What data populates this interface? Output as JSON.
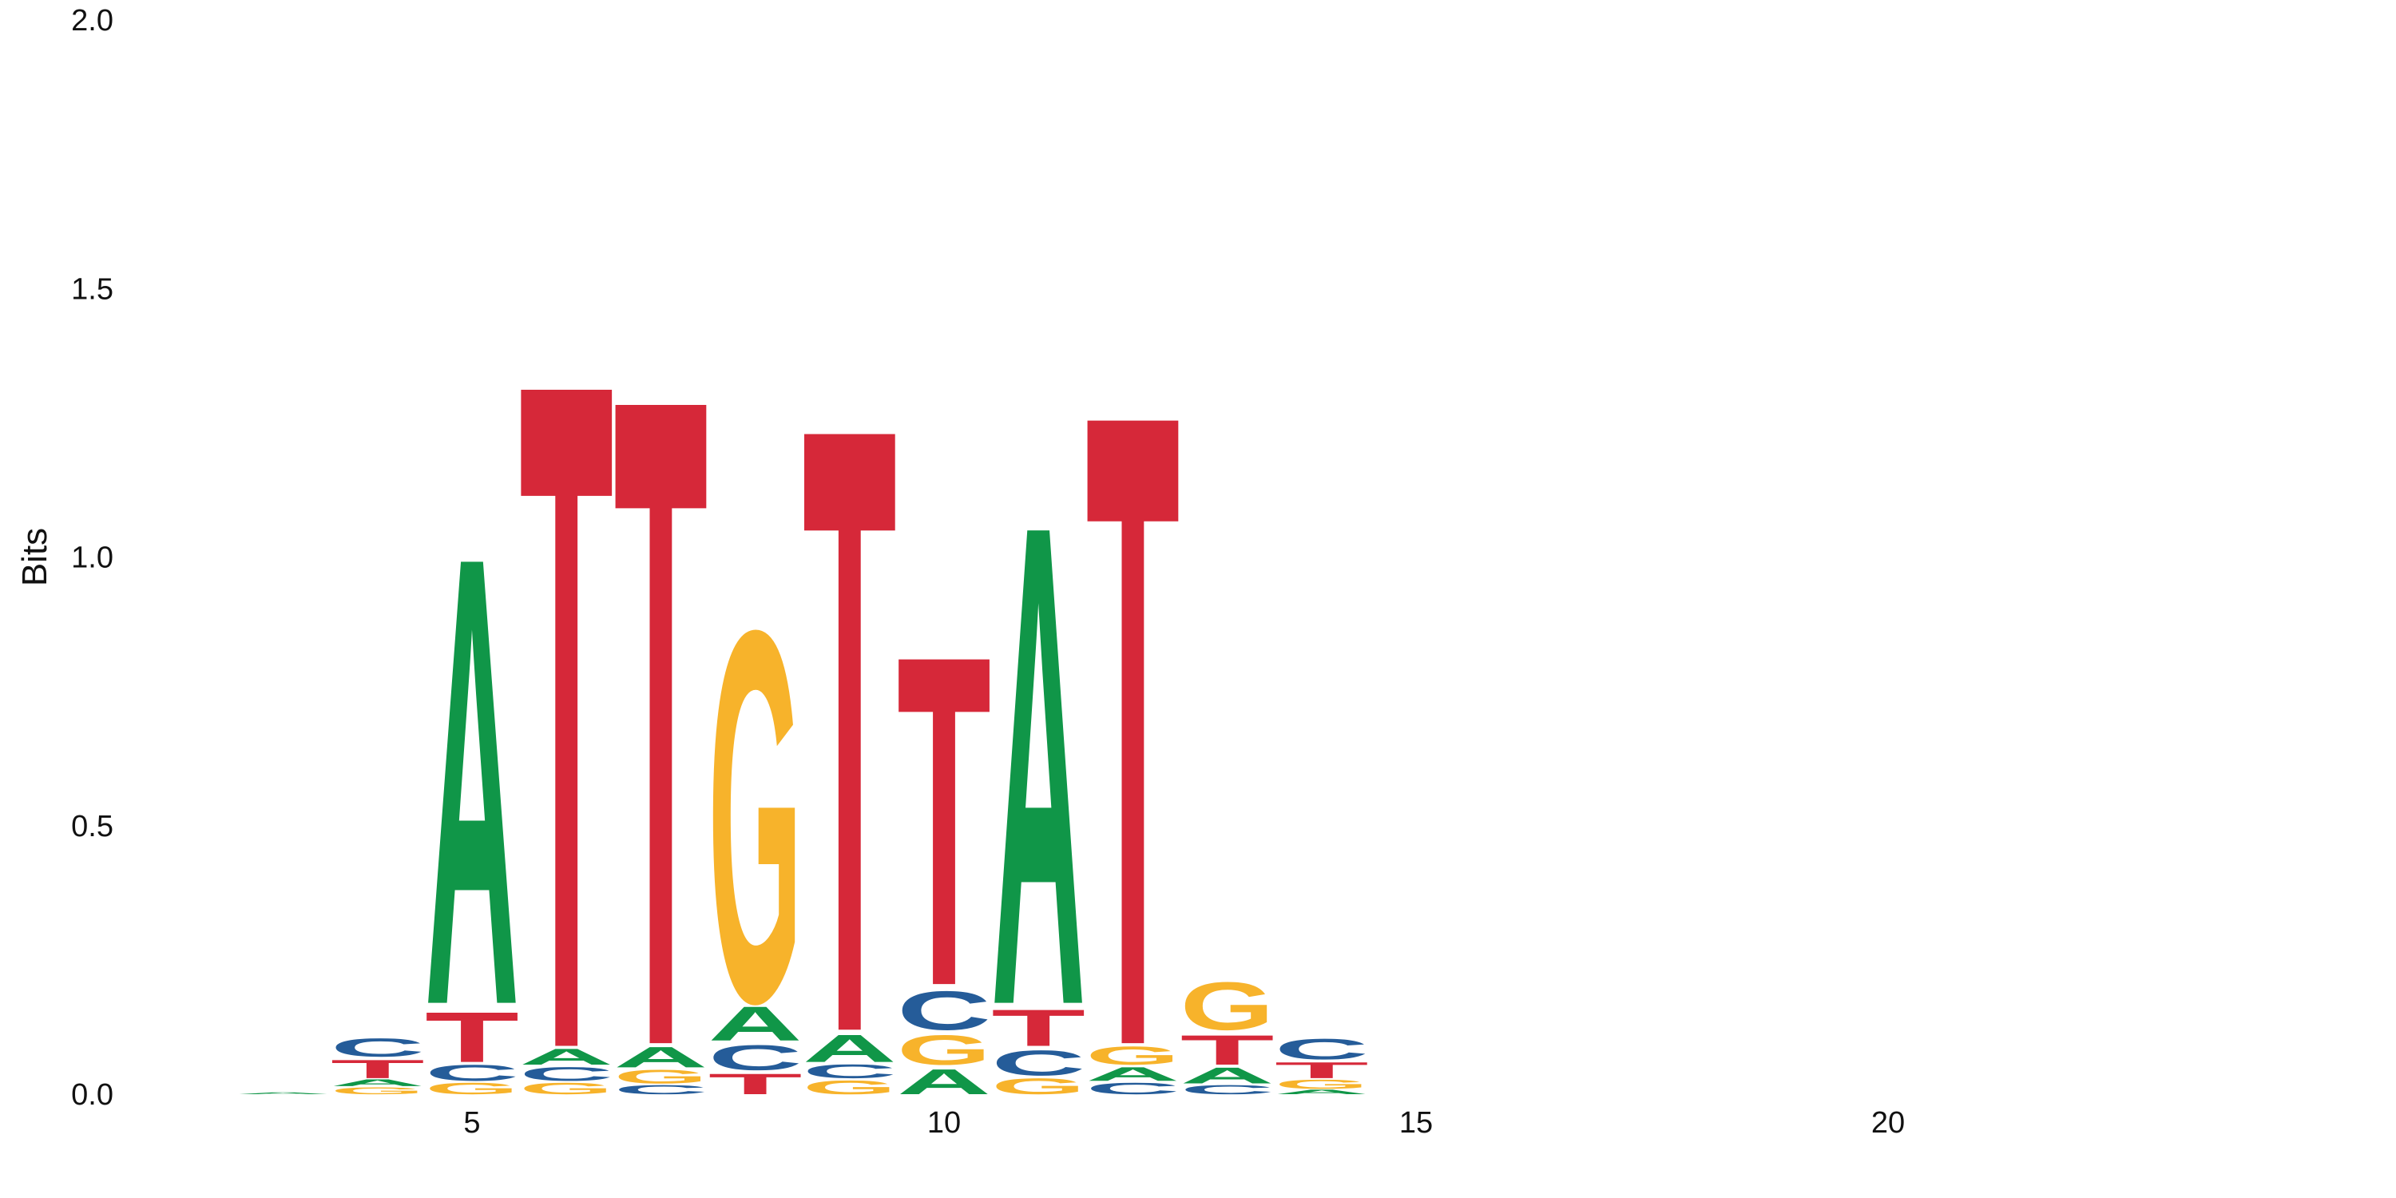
{
  "chart_data": {
    "type": "sequence-logo",
    "title": "",
    "xlabel": "",
    "ylabel": "Bits",
    "ylim": [
      0,
      2
    ],
    "xlim": [
      0,
      25
    ],
    "yticks": [
      "0.0",
      "0.5",
      "1.0",
      "1.5",
      "2.0"
    ],
    "ytick_values": [
      0,
      0.5,
      1,
      1.5,
      2
    ],
    "xticks": [
      "5",
      "10",
      "15",
      "20"
    ],
    "xtick_values": [
      5,
      10,
      15,
      20
    ],
    "colors": {
      "A": "#109648",
      "C": "#255c99",
      "G": "#f7b32b",
      "T": "#d62839"
    },
    "positions": [
      {
        "pos": 3,
        "stack": [
          {
            "base": "A",
            "bits": 0.004
          }
        ]
      },
      {
        "pos": 4,
        "stack": [
          {
            "base": "G",
            "bits": 0.015
          },
          {
            "base": "A",
            "bits": 0.015
          },
          {
            "base": "T",
            "bits": 0.04
          },
          {
            "base": "C",
            "bits": 0.04
          }
        ]
      },
      {
        "pos": 5,
        "stack": [
          {
            "base": "G",
            "bits": 0.025
          },
          {
            "base": "C",
            "bits": 0.035
          },
          {
            "base": "T",
            "bits": 0.11
          },
          {
            "base": "A",
            "bits": 0.985
          }
        ]
      },
      {
        "pos": 6,
        "stack": [
          {
            "base": "G",
            "bits": 0.025
          },
          {
            "base": "C",
            "bits": 0.03
          },
          {
            "base": "A",
            "bits": 0.035
          },
          {
            "base": "T",
            "bits": 1.465
          }
        ]
      },
      {
        "pos": 7,
        "stack": [
          {
            "base": "C",
            "bits": 0.02
          },
          {
            "base": "G",
            "bits": 0.03
          },
          {
            "base": "A",
            "bits": 0.045
          },
          {
            "base": "T",
            "bits": 1.425
          }
        ]
      },
      {
        "pos": 8,
        "stack": [
          {
            "base": "T",
            "bits": 0.045
          },
          {
            "base": "C",
            "bits": 0.055
          },
          {
            "base": "A",
            "bits": 0.075
          },
          {
            "base": "G",
            "bits": 0.815
          }
        ]
      },
      {
        "pos": 9,
        "stack": [
          {
            "base": "G",
            "bits": 0.03
          },
          {
            "base": "C",
            "bits": 0.03
          },
          {
            "base": "A",
            "bits": 0.06
          },
          {
            "base": "T",
            "bits": 1.33
          }
        ]
      },
      {
        "pos": 10,
        "stack": [
          {
            "base": "A",
            "bits": 0.055
          },
          {
            "base": "G",
            "bits": 0.065
          },
          {
            "base": "C",
            "bits": 0.085
          },
          {
            "base": "T",
            "bits": 0.725
          }
        ]
      },
      {
        "pos": 11,
        "stack": [
          {
            "base": "G",
            "bits": 0.035
          },
          {
            "base": "C",
            "bits": 0.055
          },
          {
            "base": "T",
            "bits": 0.08
          },
          {
            "base": "A",
            "bits": 1.055
          }
        ]
      },
      {
        "pos": 12,
        "stack": [
          {
            "base": "C",
            "bits": 0.025
          },
          {
            "base": "A",
            "bits": 0.03
          },
          {
            "base": "G",
            "bits": 0.04
          },
          {
            "base": "T",
            "bits": 1.39
          }
        ]
      },
      {
        "pos": 13,
        "stack": [
          {
            "base": "C",
            "bits": 0.02
          },
          {
            "base": "A",
            "bits": 0.035
          },
          {
            "base": "T",
            "bits": 0.065
          },
          {
            "base": "G",
            "bits": 0.105
          }
        ]
      },
      {
        "pos": 14,
        "stack": [
          {
            "base": "A",
            "bits": 0.01
          },
          {
            "base": "G",
            "bits": 0.02
          },
          {
            "base": "T",
            "bits": 0.035
          },
          {
            "base": "C",
            "bits": 0.045
          }
        ]
      }
    ]
  }
}
